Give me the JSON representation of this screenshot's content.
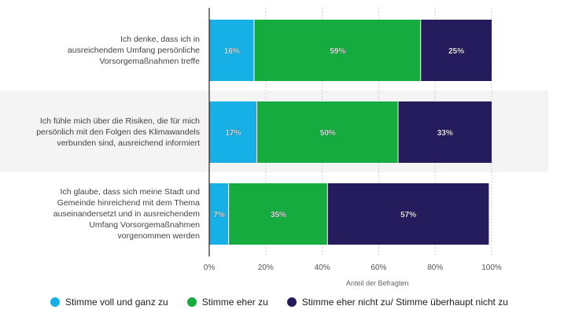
{
  "chart_data": {
    "type": "bar",
    "orientation": "horizontal",
    "stacked": true,
    "categories": [
      "Ich denke, dass ich in ausreichendem Umfang persönliche Vorsorgemaßnahmen treffe",
      "Ich fühle mich über die Risiken, die für mich persönlich mit den Folgen des Klimawandels verbunden sind, ausreichend informiert",
      "Ich glaube, dass sich meine Stadt und Gemeinde hinreichend mit dem Thema auseinandersetzt und in ausreichendem Umfang Vorsorgemaßnahmen vorgenommen werden"
    ],
    "category_lines": [
      [
        "Ich denke, dass ich in",
        "ausreichendem Umfang persönliche",
        "Vorsorgemaßnahmen treffe"
      ],
      [
        "Ich fühle mich über die Risiken, die für mich",
        "persönlich mit den Folgen des Klimawandels",
        "verbunden sind, ausreichend informiert"
      ],
      [
        "Ich glaube, dass sich meine Stadt und",
        "Gemeinde hinreichend mit dem Thema",
        "auseinandersetzt und in ausreichendem",
        "Umfang Vorsorgemaßnahmen",
        "vorgenommen werden"
      ]
    ],
    "series": [
      {
        "name": "Stimme voll und ganz zu",
        "values": [
          16,
          17,
          7
        ],
        "labels": [
          "16%",
          "17%",
          "7%"
        ],
        "color": "#17b0e6"
      },
      {
        "name": "Stimme eher zu",
        "values": [
          59,
          50,
          35
        ],
        "labels": [
          "59%",
          "50%",
          "35%"
        ],
        "color": "#16ab3f"
      },
      {
        "name": "Stimme eher nicht zu/ Stimme überhaupt nicht zu",
        "values": [
          25,
          33,
          57
        ],
        "labels": [
          "25%",
          "33%",
          "57%"
        ],
        "color": "#241c5c"
      }
    ],
    "xlim": [
      0,
      100
    ],
    "xticks": [
      0,
      20,
      40,
      60,
      80,
      100
    ],
    "xtick_labels": [
      "0%",
      "20%",
      "40%",
      "60%",
      "80%",
      "100%"
    ],
    "xlabel": "Anteil der Befragten",
    "grid": true,
    "legend_position": "bottom"
  }
}
